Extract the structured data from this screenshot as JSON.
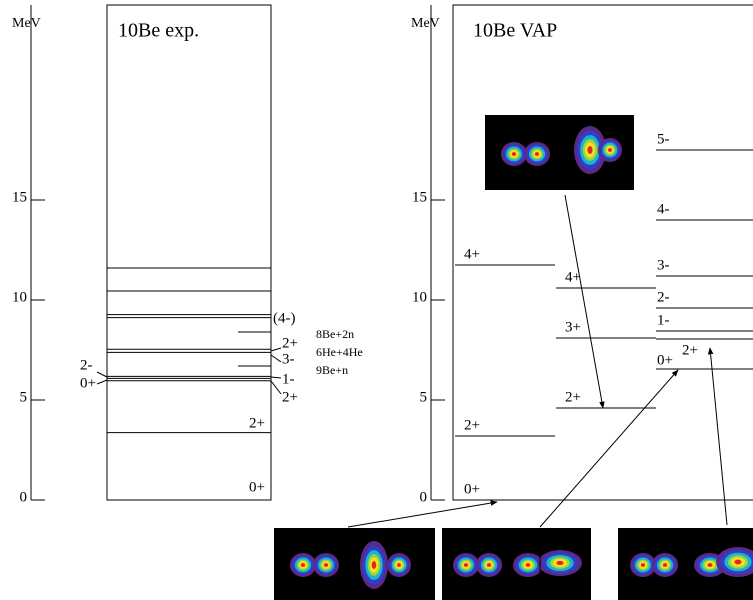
{
  "exp": {
    "axis_label": "MeV",
    "yticks": [
      0,
      5,
      10,
      15
    ],
    "ylim": [
      0,
      24.75
    ],
    "title": "10Be exp.",
    "levels": [
      11.6,
      10.45,
      9.27,
      9.12,
      7.54,
      7.38,
      6.18,
      6.08,
      5.96,
      3.37,
      0
    ],
    "short_levels": [
      8.4,
      6.7
    ],
    "labels": [
      "(4-)",
      "2+",
      "3-",
      "1-",
      "2+",
      "2-",
      "0+",
      "2+",
      "0+"
    ],
    "thresholds": [
      "8Be+2n",
      "6He+4He",
      "9Be+n"
    ]
  },
  "vap": {
    "axis_label": "MeV",
    "yticks": [
      0,
      5,
      10,
      15
    ],
    "ylim": [
      0,
      24.75
    ],
    "title": "10Be VAP",
    "columns": [
      [
        {
          "label": "4+",
          "energy": 11.75
        },
        {
          "label": "2+",
          "energy": 3.2
        },
        {
          "label": "0+",
          "energy": 0
        }
      ],
      [
        {
          "label": "4+",
          "energy": 10.6
        },
        {
          "label": "3+",
          "energy": 8.1
        },
        {
          "label": "2+",
          "energy": 4.6
        }
      ],
      [
        {
          "label": "5-",
          "energy": 17.5
        },
        {
          "label": "4-",
          "energy": 14
        },
        {
          "label": "3-",
          "energy": 11.2
        },
        {
          "label": "2-",
          "energy": 9.6
        },
        {
          "label": "1-",
          "energy": 8.45
        },
        {
          "label": "2+",
          "energy": 8.05
        },
        {
          "label": "0+",
          "energy": 6.55
        }
      ]
    ]
  }
}
